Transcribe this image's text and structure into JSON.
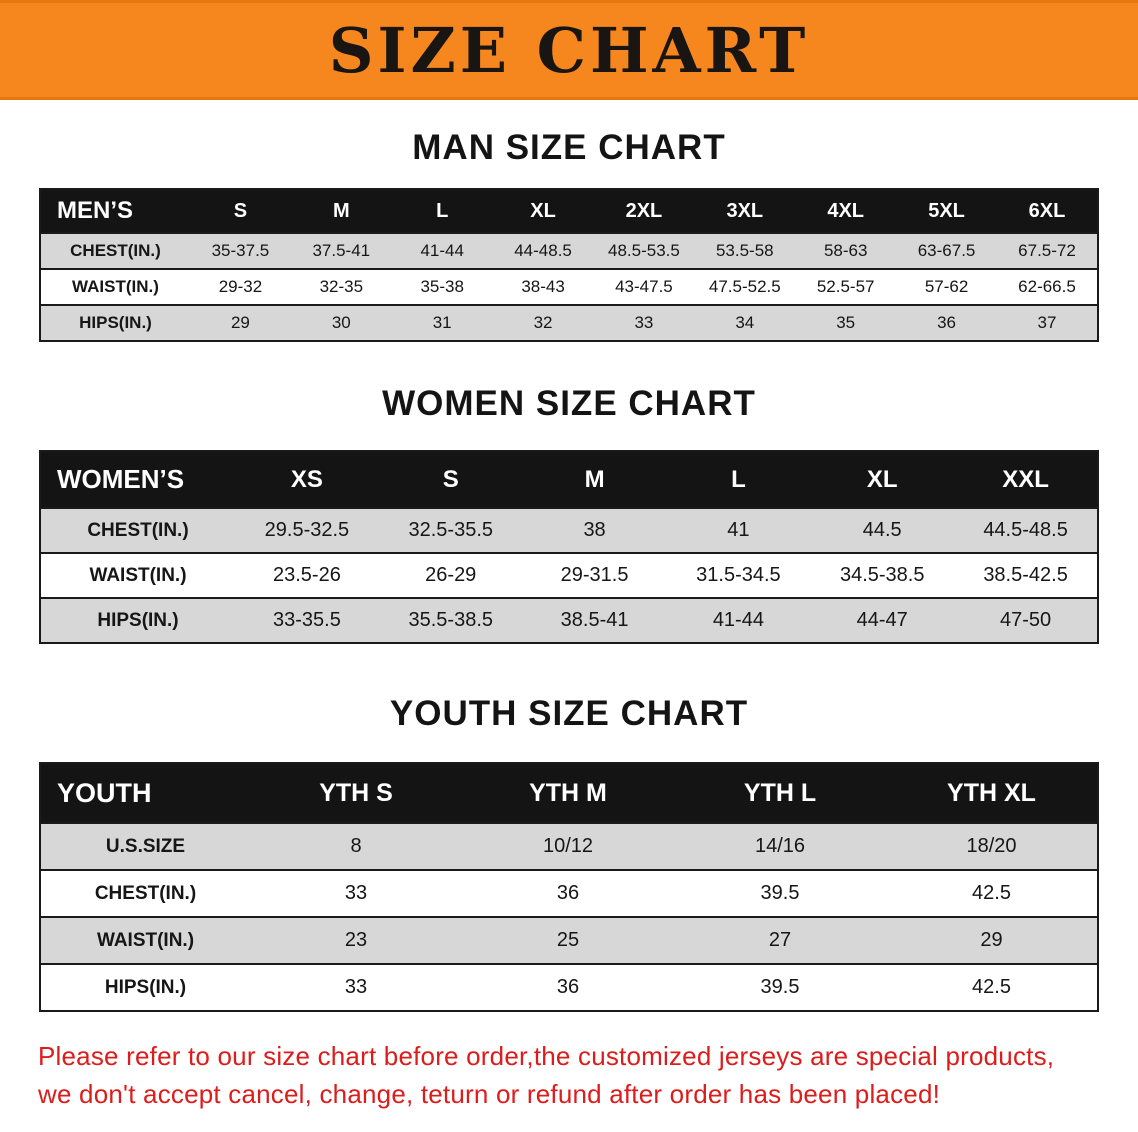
{
  "banner": {
    "title": "SIZE CHART",
    "bg_color": "#f6861e"
  },
  "sections": [
    {
      "id": "men",
      "heading": "MAN SIZE CHART",
      "table": {
        "header": [
          "MEN’S",
          "S",
          "M",
          "L",
          "XL",
          "2XL",
          "3XL",
          "4XL",
          "5XL",
          "6XL"
        ],
        "rows": [
          [
            "CHEST(IN.)",
            "35-37.5",
            "37.5-41",
            "41-44",
            "44-48.5",
            "48.5-53.5",
            "53.5-58",
            "58-63",
            "63-67.5",
            "67.5-72"
          ],
          [
            "WAIST(IN.)",
            "29-32",
            "32-35",
            "35-38",
            "38-43",
            "43-47.5",
            "47.5-52.5",
            "52.5-57",
            "57-62",
            "62-66.5"
          ],
          [
            "HIPS(IN.)",
            "29",
            "30",
            "31",
            "32",
            "33",
            "34",
            "35",
            "36",
            "37"
          ]
        ]
      }
    },
    {
      "id": "women",
      "heading": "WOMEN SIZE CHART",
      "table": {
        "header": [
          "WOMEN’S",
          "XS",
          "S",
          "M",
          "L",
          "XL",
          "XXL"
        ],
        "rows": [
          [
            "CHEST(IN.)",
            "29.5-32.5",
            "32.5-35.5",
            "38",
            "41",
            "44.5",
            "44.5-48.5"
          ],
          [
            "WAIST(IN.)",
            "23.5-26",
            "26-29",
            "29-31.5",
            "31.5-34.5",
            "34.5-38.5",
            "38.5-42.5"
          ],
          [
            "HIPS(IN.)",
            "33-35.5",
            "35.5-38.5",
            "38.5-41",
            "41-44",
            "44-47",
            "47-50"
          ]
        ]
      }
    },
    {
      "id": "youth",
      "heading": "YOUTH SIZE CHART",
      "table": {
        "header": [
          "YOUTH",
          "YTH S",
          "YTH M",
          "YTH L",
          "YTH XL"
        ],
        "rows": [
          [
            "U.S.SIZE",
            "8",
            "10/12",
            "14/16",
            "18/20"
          ],
          [
            "CHEST(IN.)",
            "33",
            "36",
            "39.5",
            "42.5"
          ],
          [
            "WAIST(IN.)",
            "23",
            "25",
            "27",
            "29"
          ],
          [
            "HIPS(IN.)",
            "33",
            "36",
            "39.5",
            "42.5"
          ]
        ]
      }
    }
  ],
  "disclaimer": {
    "text_color": "#dd1c1c",
    "lines": [
      "Please refer to our size chart before order,the customized jerseys are special products,",
      "we don't accept cancel, change, teturn or refund after order has been placed!"
    ]
  }
}
